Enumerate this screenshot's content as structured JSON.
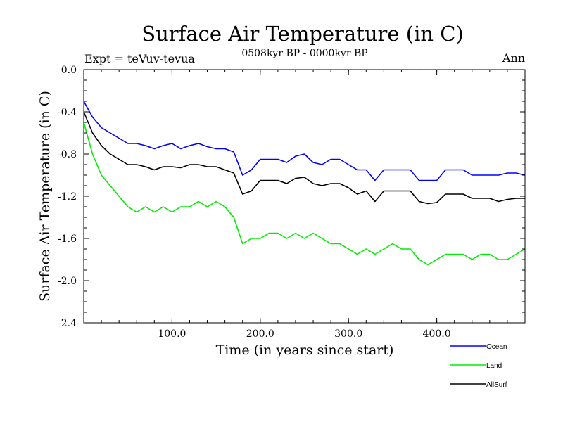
{
  "chart_data": {
    "type": "line",
    "title": "Surface Air Temperature (in C)",
    "subtitle": "0508kyr BP - 0000kyr BP",
    "left_label": "Expt = teVuv-tevua",
    "right_label": "Ann",
    "xlabel": "Time (in years since start)",
    "ylabel": "Surface Air Temperature (in C)",
    "xlim": [
      0,
      500
    ],
    "ylim": [
      -2.4,
      0.0
    ],
    "x_ticks": [
      100,
      200,
      300,
      400
    ],
    "x_tick_labels": [
      "100.0",
      "200.0",
      "300.0",
      "400.0"
    ],
    "y_ticks": [
      0.0,
      -0.4,
      -0.8,
      -1.2,
      -1.6,
      -2.0,
      -2.4
    ],
    "y_tick_labels": [
      "0.0",
      "-0.4",
      "-0.8",
      "-1.2",
      "-1.6",
      "-2.0",
      "-2.4"
    ],
    "legend_position": "bottom-right, below plot",
    "x": [
      0,
      10,
      20,
      30,
      40,
      50,
      60,
      70,
      80,
      90,
      100,
      110,
      120,
      130,
      140,
      150,
      160,
      170,
      180,
      190,
      200,
      210,
      220,
      230,
      240,
      250,
      260,
      270,
      280,
      290,
      300,
      310,
      320,
      330,
      340,
      350,
      360,
      370,
      380,
      390,
      400,
      410,
      420,
      430,
      440,
      450,
      460,
      470,
      480,
      490,
      500
    ],
    "series": [
      {
        "name": "Ocean",
        "color": "#0000ff",
        "values": [
          -0.3,
          -0.45,
          -0.55,
          -0.6,
          -0.65,
          -0.7,
          -0.7,
          -0.72,
          -0.75,
          -0.72,
          -0.7,
          -0.75,
          -0.72,
          -0.7,
          -0.73,
          -0.75,
          -0.75,
          -0.78,
          -1.0,
          -0.95,
          -0.85,
          -0.85,
          -0.85,
          -0.88,
          -0.82,
          -0.8,
          -0.88,
          -0.9,
          -0.85,
          -0.85,
          -0.9,
          -0.95,
          -0.95,
          -1.05,
          -0.95,
          -0.95,
          -0.95,
          -0.95,
          -1.05,
          -1.05,
          -1.05,
          -0.95,
          -0.95,
          -0.95,
          -1.0,
          -1.0,
          -1.0,
          -1.0,
          -0.98,
          -0.98,
          -1.0
        ]
      },
      {
        "name": "Land",
        "color": "#00ee00",
        "values": [
          -0.5,
          -0.8,
          -1.0,
          -1.1,
          -1.2,
          -1.3,
          -1.35,
          -1.3,
          -1.35,
          -1.3,
          -1.35,
          -1.3,
          -1.3,
          -1.25,
          -1.3,
          -1.25,
          -1.3,
          -1.4,
          -1.65,
          -1.6,
          -1.6,
          -1.55,
          -1.55,
          -1.6,
          -1.55,
          -1.6,
          -1.55,
          -1.6,
          -1.65,
          -1.65,
          -1.7,
          -1.75,
          -1.7,
          -1.75,
          -1.7,
          -1.65,
          -1.7,
          -1.7,
          -1.8,
          -1.85,
          -1.8,
          -1.75,
          -1.75,
          -1.75,
          -1.8,
          -1.75,
          -1.75,
          -1.8,
          -1.8,
          -1.75,
          -1.7
        ]
      },
      {
        "name": "AllSurf",
        "color": "#000000",
        "values": [
          -0.4,
          -0.6,
          -0.72,
          -0.8,
          -0.85,
          -0.9,
          -0.9,
          -0.92,
          -0.95,
          -0.92,
          -0.92,
          -0.93,
          -0.9,
          -0.9,
          -0.92,
          -0.92,
          -0.95,
          -0.98,
          -1.18,
          -1.15,
          -1.05,
          -1.05,
          -1.05,
          -1.08,
          -1.03,
          -1.02,
          -1.08,
          -1.1,
          -1.08,
          -1.08,
          -1.12,
          -1.18,
          -1.15,
          -1.25,
          -1.15,
          -1.15,
          -1.15,
          -1.15,
          -1.25,
          -1.27,
          -1.26,
          -1.18,
          -1.18,
          -1.18,
          -1.22,
          -1.22,
          -1.22,
          -1.25,
          -1.23,
          -1.22,
          -1.22
        ]
      }
    ]
  }
}
